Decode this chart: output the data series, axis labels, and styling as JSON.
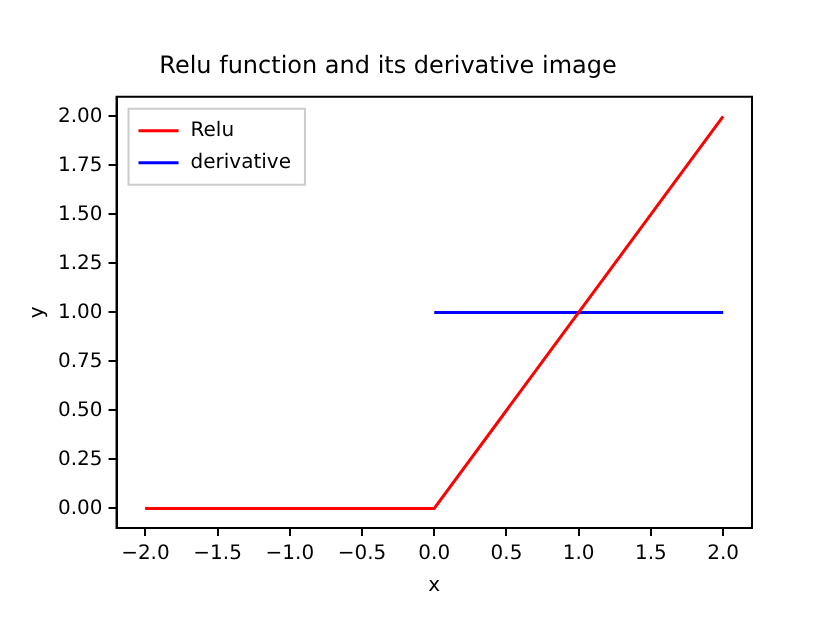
{
  "chart_data": {
    "type": "line",
    "title": "Relu function and its derivative image",
    "xlabel": "x",
    "ylabel": "y",
    "series": [
      {
        "name": "Relu",
        "color": "#ff0000",
        "x": [
          -2,
          0,
          2
        ],
        "values": [
          0,
          0,
          2
        ]
      },
      {
        "name": "derivative",
        "color": "#0000ff",
        "x": [
          -2,
          0,
          null,
          0,
          2
        ],
        "values": [
          0,
          0,
          null,
          1,
          1
        ]
      }
    ],
    "xlim": [
      -2.2,
      2.2
    ],
    "xticks": [
      {
        "value": -2,
        "label": "−2.0"
      },
      {
        "value": -1.5,
        "label": "−1.5"
      },
      {
        "value": -1,
        "label": "−1.0"
      },
      {
        "value": -0.5,
        "label": "−0.5"
      },
      {
        "value": 0,
        "label": "0.0"
      },
      {
        "value": 0.5,
        "label": "0.5"
      },
      {
        "value": 1,
        "label": "1.0"
      },
      {
        "value": 1.5,
        "label": "1.5"
      },
      {
        "value": 2,
        "label": "2.0"
      }
    ],
    "ylim": [
      -0.1,
      2.1
    ],
    "yticks": [
      {
        "value": 0,
        "label": "0.00"
      },
      {
        "value": 0.25,
        "label": "0.25"
      },
      {
        "value": 0.5,
        "label": "0.50"
      },
      {
        "value": 0.75,
        "label": "0.75"
      },
      {
        "value": 1,
        "label": "1.00"
      },
      {
        "value": 1.25,
        "label": "1.25"
      },
      {
        "value": 1.5,
        "label": "1.50"
      },
      {
        "value": 1.75,
        "label": "1.75"
      },
      {
        "value": 2,
        "label": "2.00"
      }
    ],
    "grid": false,
    "legend": "top left",
    "marker": "none",
    "line_style": "solid"
  }
}
